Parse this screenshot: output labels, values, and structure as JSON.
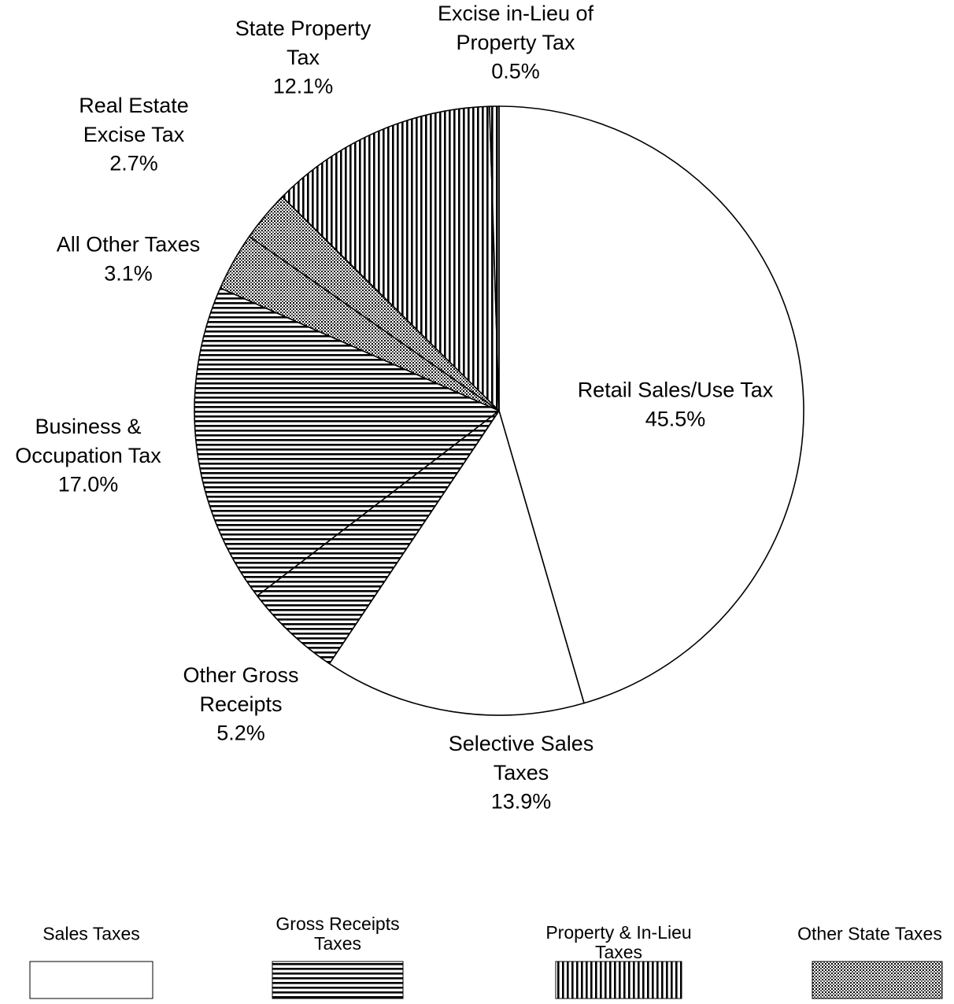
{
  "chart_data": {
    "type": "pie",
    "categories": [
      "Retail Sales/Use Tax",
      "Selective Sales Taxes",
      "Other Gross Receipts",
      "Business & Occupation Tax",
      "All Other Taxes",
      "Real Estate Excise Tax",
      "State Property Tax",
      "Excise in-Lieu of Property Tax"
    ],
    "values": [
      45.5,
      13.9,
      5.2,
      17.0,
      3.1,
      2.7,
      12.1,
      0.5
    ],
    "value_labels": [
      "45.5%",
      "13.9%",
      "5.2%",
      "17.0%",
      "3.1%",
      "2.7%",
      "12.1%",
      "0.5%"
    ],
    "patterns": [
      "white",
      "white",
      "horizontal",
      "horizontal",
      "dotted",
      "dotted",
      "vertical",
      "vertical"
    ],
    "legend": [
      {
        "name": "Sales Taxes",
        "pattern": "white"
      },
      {
        "name": "Gross Receipts Taxes",
        "pattern": "horizontal"
      },
      {
        "name": "Property & In-Lieu Taxes",
        "pattern": "vertical"
      },
      {
        "name": "Other State Taxes",
        "pattern": "dotted"
      }
    ]
  }
}
